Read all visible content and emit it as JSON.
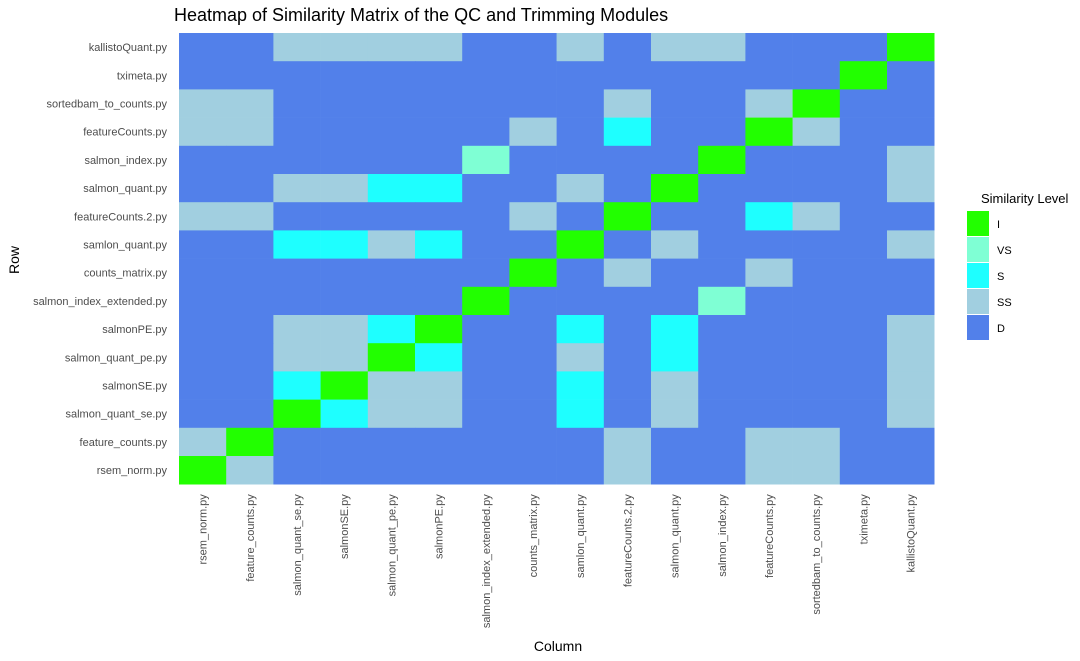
{
  "chart_data": {
    "type": "heatmap",
    "title": "Heatmap of Similarity Matrix of the QC and Trimming Modules",
    "xlabel": "Column",
    "ylabel": "Row",
    "columns": [
      "rsem_norm.py",
      "feature_counts.py",
      "salmon_quant_se.py",
      "salmonSE.py",
      "salmon_quant_pe.py",
      "salmonPE.py",
      "salmon_index_extended.py",
      "counts_matrix.py",
      "samlon_quant.py",
      "featureCounts.2.py",
      "salmon_quant.py",
      "salmon_index.py",
      "featureCounts.py",
      "sortedbam_to_counts.py",
      "tximeta.py",
      "kallistoQuant.py"
    ],
    "rows": [
      "kallistoQuant.py",
      "tximeta.py",
      "sortedbam_to_counts.py",
      "featureCounts.py",
      "salmon_index.py",
      "salmon_quant.py",
      "featureCounts.2.py",
      "samlon_quant.py",
      "counts_matrix.py",
      "salmon_index_extended.py",
      "salmonPE.py",
      "salmon_quant_pe.py",
      "salmonSE.py",
      "salmon_quant_se.py",
      "feature_counts.py",
      "rsem_norm.py"
    ],
    "legend": {
      "title": "Similarity Level",
      "position": "right",
      "levels": [
        "I",
        "VS",
        "S",
        "SS",
        "D"
      ],
      "colors": {
        "I": "#22ff00",
        "VS": "#7fffd4",
        "S": "#1effff",
        "SS": "#a1cfe0",
        "D": "#5280ea"
      }
    },
    "matrix": [
      [
        "D",
        "D",
        "SS",
        "SS",
        "SS",
        "SS",
        "D",
        "D",
        "SS",
        "D",
        "SS",
        "SS",
        "D",
        "D",
        "D",
        "I"
      ],
      [
        "D",
        "D",
        "D",
        "D",
        "D",
        "D",
        "D",
        "D",
        "D",
        "D",
        "D",
        "D",
        "D",
        "D",
        "I",
        "D"
      ],
      [
        "SS",
        "SS",
        "D",
        "D",
        "D",
        "D",
        "D",
        "D",
        "D",
        "SS",
        "D",
        "D",
        "SS",
        "I",
        "D",
        "D"
      ],
      [
        "SS",
        "SS",
        "D",
        "D",
        "D",
        "D",
        "D",
        "SS",
        "D",
        "S",
        "D",
        "D",
        "I",
        "SS",
        "D",
        "D"
      ],
      [
        "D",
        "D",
        "D",
        "D",
        "D",
        "D",
        "VS",
        "D",
        "D",
        "D",
        "D",
        "I",
        "D",
        "D",
        "D",
        "SS"
      ],
      [
        "D",
        "D",
        "SS",
        "SS",
        "S",
        "S",
        "D",
        "D",
        "SS",
        "D",
        "I",
        "D",
        "D",
        "D",
        "D",
        "SS"
      ],
      [
        "SS",
        "SS",
        "D",
        "D",
        "D",
        "D",
        "D",
        "SS",
        "D",
        "I",
        "D",
        "D",
        "S",
        "SS",
        "D",
        "D"
      ],
      [
        "D",
        "D",
        "S",
        "S",
        "SS",
        "S",
        "D",
        "D",
        "I",
        "D",
        "SS",
        "D",
        "D",
        "D",
        "D",
        "SS"
      ],
      [
        "D",
        "D",
        "D",
        "D",
        "D",
        "D",
        "D",
        "I",
        "D",
        "SS",
        "D",
        "D",
        "SS",
        "D",
        "D",
        "D"
      ],
      [
        "D",
        "D",
        "D",
        "D",
        "D",
        "D",
        "I",
        "D",
        "D",
        "D",
        "D",
        "VS",
        "D",
        "D",
        "D",
        "D"
      ],
      [
        "D",
        "D",
        "SS",
        "SS",
        "S",
        "I",
        "D",
        "D",
        "S",
        "D",
        "S",
        "D",
        "D",
        "D",
        "D",
        "SS"
      ],
      [
        "D",
        "D",
        "SS",
        "SS",
        "I",
        "S",
        "D",
        "D",
        "SS",
        "D",
        "S",
        "D",
        "D",
        "D",
        "D",
        "SS"
      ],
      [
        "D",
        "D",
        "S",
        "I",
        "SS",
        "SS",
        "D",
        "D",
        "S",
        "D",
        "SS",
        "D",
        "D",
        "D",
        "D",
        "SS"
      ],
      [
        "D",
        "D",
        "I",
        "S",
        "SS",
        "SS",
        "D",
        "D",
        "S",
        "D",
        "SS",
        "D",
        "D",
        "D",
        "D",
        "SS"
      ],
      [
        "SS",
        "I",
        "D",
        "D",
        "D",
        "D",
        "D",
        "D",
        "D",
        "SS",
        "D",
        "D",
        "SS",
        "SS",
        "D",
        "D"
      ],
      [
        "I",
        "SS",
        "D",
        "D",
        "D",
        "D",
        "D",
        "D",
        "D",
        "SS",
        "D",
        "D",
        "SS",
        "SS",
        "D",
        "D"
      ]
    ]
  }
}
